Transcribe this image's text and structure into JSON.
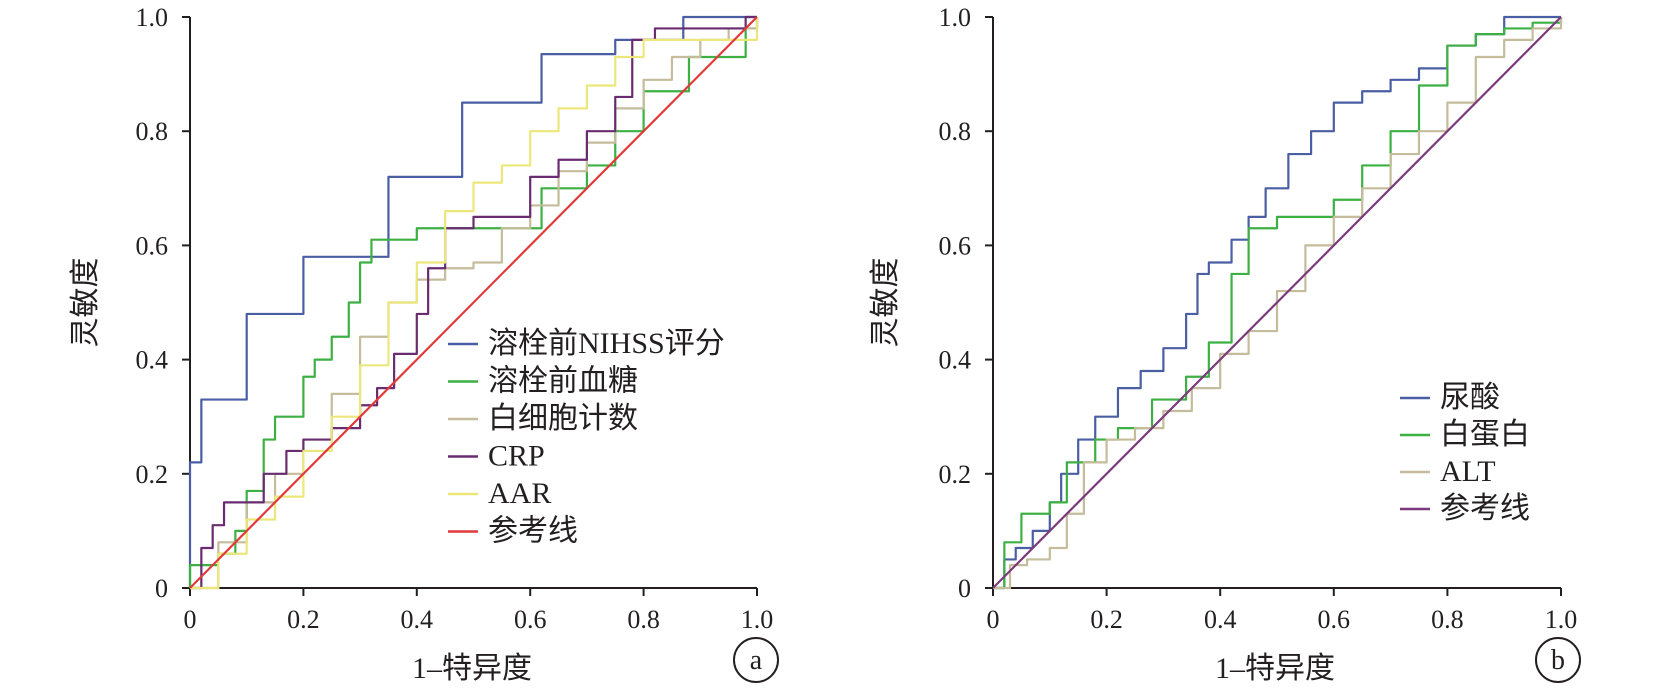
{
  "chart_data": [
    {
      "type": "line",
      "panel_label": "a",
      "xlabel": "1–特异度",
      "ylabel": "灵敏度",
      "xlim": [
        0,
        1
      ],
      "ylim": [
        0,
        1
      ],
      "xticks": [
        "0",
        "0.2",
        "0.4",
        "0.6",
        "0.8",
        "1.0"
      ],
      "yticks": [
        "0",
        "0.2",
        "0.4",
        "0.6",
        "0.8",
        "1.0"
      ],
      "grid": false,
      "legend_position": "bottom-right",
      "series": [
        {
          "name": "溶栓前NIHSS评分",
          "color": "#4a5fa3",
          "x": [
            0,
            0,
            0.02,
            0.02,
            0.1,
            0.2,
            0.35,
            0.48,
            0.62,
            0.75,
            0.87,
            0.98,
            1.0
          ],
          "y": [
            0,
            0.22,
            0.32,
            0.33,
            0.48,
            0.58,
            0.72,
            0.85,
            0.935,
            0.96,
            1.0,
            1.0,
            1.0
          ]
        },
        {
          "name": "溶栓前血糖",
          "color": "#3cb043",
          "x": [
            0,
            0,
            0.05,
            0.08,
            0.1,
            0.13,
            0.15,
            0.2,
            0.22,
            0.25,
            0.28,
            0.3,
            0.32,
            0.35,
            0.4,
            0.55,
            0.62,
            0.7,
            0.75,
            0.8,
            0.88,
            0.98,
            1.0
          ],
          "y": [
            0,
            0.04,
            0.06,
            0.1,
            0.17,
            0.26,
            0.3,
            0.37,
            0.4,
            0.44,
            0.5,
            0.57,
            0.61,
            0.61,
            0.63,
            0.63,
            0.7,
            0.74,
            0.8,
            0.87,
            0.93,
            0.98,
            1.0
          ]
        },
        {
          "name": "白细胞计数",
          "color": "#c4bc9b",
          "x": [
            0,
            0.05,
            0.1,
            0.15,
            0.2,
            0.25,
            0.3,
            0.35,
            0.4,
            0.45,
            0.5,
            0.55,
            0.6,
            0.65,
            0.7,
            0.75,
            0.8,
            0.85,
            0.9,
            0.95,
            1.0
          ],
          "y": [
            0,
            0.08,
            0.15,
            0.2,
            0.26,
            0.34,
            0.44,
            0.5,
            0.54,
            0.56,
            0.57,
            0.63,
            0.67,
            0.73,
            0.78,
            0.84,
            0.89,
            0.93,
            0.96,
            0.98,
            1.0
          ]
        },
        {
          "name": "CRP",
          "color": "#6a2c70",
          "x": [
            0,
            0.02,
            0.04,
            0.06,
            0.1,
            0.13,
            0.17,
            0.2,
            0.25,
            0.3,
            0.33,
            0.36,
            0.4,
            0.42,
            0.45,
            0.5,
            0.55,
            0.6,
            0.65,
            0.7,
            0.75,
            0.78,
            0.82,
            0.88,
            0.98,
            1.0
          ],
          "y": [
            0,
            0.07,
            0.11,
            0.15,
            0.15,
            0.2,
            0.24,
            0.26,
            0.28,
            0.32,
            0.35,
            0.41,
            0.48,
            0.56,
            0.63,
            0.65,
            0.65,
            0.72,
            0.75,
            0.8,
            0.86,
            0.96,
            0.98,
            0.98,
            1.0,
            1.0
          ]
        },
        {
          "name": "AAR",
          "color": "#ece77b",
          "x": [
            0,
            0.05,
            0.1,
            0.15,
            0.2,
            0.25,
            0.3,
            0.35,
            0.4,
            0.45,
            0.5,
            0.55,
            0.6,
            0.65,
            0.7,
            0.75,
            0.8,
            0.85,
            0.9,
            0.95,
            1.0
          ],
          "y": [
            0,
            0.06,
            0.12,
            0.16,
            0.24,
            0.3,
            0.39,
            0.5,
            0.57,
            0.66,
            0.71,
            0.74,
            0.8,
            0.84,
            0.88,
            0.93,
            0.96,
            0.96,
            0.96,
            0.96,
            1.0
          ]
        },
        {
          "name": "参考线",
          "color": "#e03a3a",
          "x": [
            0,
            1
          ],
          "y": [
            0,
            1
          ]
        }
      ]
    },
    {
      "type": "line",
      "panel_label": "b",
      "xlabel": "1–特异度",
      "ylabel": "灵敏度",
      "xlim": [
        0,
        1
      ],
      "ylim": [
        0,
        1
      ],
      "xticks": [
        "0",
        "0.2",
        "0.4",
        "0.6",
        "0.8",
        "1.0"
      ],
      "yticks": [
        "0",
        "0.2",
        "0.4",
        "0.6",
        "0.8",
        "1.0"
      ],
      "grid": false,
      "legend_position": "bottom-right",
      "series": [
        {
          "name": "尿酸",
          "color": "#4a5fa3",
          "x": [
            0,
            0.02,
            0.04,
            0.07,
            0.1,
            0.12,
            0.15,
            0.18,
            0.22,
            0.26,
            0.3,
            0.34,
            0.36,
            0.38,
            0.42,
            0.45,
            0.48,
            0.52,
            0.56,
            0.6,
            0.65,
            0.7,
            0.75,
            0.8,
            0.85,
            0.9,
            1.0
          ],
          "y": [
            0,
            0.05,
            0.07,
            0.1,
            0.15,
            0.2,
            0.26,
            0.3,
            0.35,
            0.38,
            0.42,
            0.48,
            0.55,
            0.57,
            0.61,
            0.65,
            0.7,
            0.76,
            0.8,
            0.85,
            0.87,
            0.89,
            0.91,
            0.95,
            0.97,
            1.0,
            1.0
          ]
        },
        {
          "name": "白蛋白",
          "color": "#3cb043",
          "x": [
            0,
            0.02,
            0.05,
            0.1,
            0.13,
            0.18,
            0.22,
            0.28,
            0.34,
            0.38,
            0.42,
            0.45,
            0.5,
            0.55,
            0.6,
            0.65,
            0.7,
            0.75,
            0.8,
            0.85,
            0.9,
            0.95,
            1.0
          ],
          "y": [
            0,
            0.08,
            0.13,
            0.15,
            0.22,
            0.26,
            0.28,
            0.33,
            0.37,
            0.43,
            0.55,
            0.63,
            0.65,
            0.65,
            0.68,
            0.74,
            0.8,
            0.88,
            0.95,
            0.97,
            0.98,
            0.99,
            1.0
          ]
        },
        {
          "name": "ALT",
          "color": "#c4bc9b",
          "x": [
            0,
            0.03,
            0.06,
            0.1,
            0.13,
            0.16,
            0.2,
            0.25,
            0.3,
            0.35,
            0.4,
            0.45,
            0.5,
            0.55,
            0.6,
            0.65,
            0.7,
            0.75,
            0.8,
            0.85,
            0.9,
            0.95,
            1.0
          ],
          "y": [
            0,
            0.04,
            0.05,
            0.07,
            0.13,
            0.22,
            0.26,
            0.28,
            0.31,
            0.35,
            0.41,
            0.45,
            0.52,
            0.6,
            0.65,
            0.7,
            0.76,
            0.8,
            0.85,
            0.93,
            0.96,
            0.98,
            1.0
          ]
        },
        {
          "name": "参考线",
          "color": "#7a3a7c",
          "x": [
            0,
            1
          ],
          "y": [
            0,
            1
          ]
        }
      ]
    }
  ]
}
